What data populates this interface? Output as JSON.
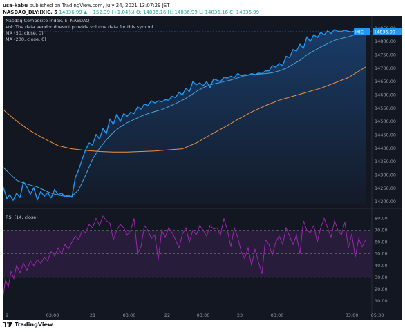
{
  "header": {
    "author": "usa-kabu",
    "published_text": "published on TradingView.com, July 24, 2021 13:07:29 JST",
    "symbol": "NASDAQ_DLY:IXIC, 5",
    "quote": "14836.99 ▲ +152.39 (+1.04%) O: 14836.16 H: 14836.99 L: 14836.16 C: 14836.99"
  },
  "legend": {
    "title": "Nasdaq Composite Index, 5, NASDAQ",
    "vol": "Vol: The data vendor doesn't provide volume data for this symbol.",
    "ma50": "MA (50, close, 0)",
    "ma200": "MA (200, close, 0)",
    "rsi": "RSI (14, close)"
  },
  "colors": {
    "background": "#131722",
    "price_line": "#2196f3",
    "ma50": "#4aa3df",
    "ma200": "#f0913c",
    "rsi": "#9c27b0",
    "rsi_band": "#2a1d3d",
    "tag_bg": "#2196f3"
  },
  "price_tag": {
    "value": "14836.99",
    "label": "IXIC"
  },
  "footer": {
    "brand": "TradingView"
  },
  "chart_data": [
    {
      "type": "line",
      "title": "Nasdaq Composite Index, 5, NASDAQ",
      "ylim": [
        14190,
        14860
      ],
      "y_ticks": [
        "14850.00",
        "14800.00",
        "14750.00",
        "14700.00",
        "14650.00",
        "14600.00",
        "14550.00",
        "14500.00",
        "14450.00",
        "14400.00",
        "14350.00",
        "14300.00",
        "14250.00",
        "14200.00"
      ],
      "x_labels": [
        "9",
        "03:00",
        "21",
        "03:00",
        "22",
        "03:00",
        "23",
        "03:00",
        "03:00",
        "05:30"
      ],
      "series": [
        {
          "name": "Nasdaq Composite Index",
          "t": [
            0,
            3,
            6,
            10,
            15,
            20,
            25,
            30,
            35,
            40,
            45,
            50,
            55,
            60,
            65,
            70,
            75,
            80,
            85,
            90,
            95,
            100,
            105,
            110,
            115,
            120,
            125,
            130,
            135,
            140,
            145,
            150,
            155,
            160,
            165,
            170,
            175,
            180,
            185,
            190,
            195,
            200,
            205,
            210,
            215,
            220,
            225,
            230,
            235,
            240,
            245,
            250,
            255,
            260,
            265,
            270,
            275,
            280,
            285,
            290,
            295,
            300,
            305,
            310,
            315,
            320,
            325,
            330,
            335,
            340,
            345,
            350,
            355,
            360,
            365,
            370,
            375,
            380,
            385,
            390,
            395,
            400,
            405,
            410,
            415,
            420,
            425,
            430,
            435,
            440,
            445,
            450,
            455,
            460,
            465,
            470,
            475,
            480,
            485,
            490,
            495,
            500,
            505,
            510,
            515,
            520,
            525
          ],
          "values": [
            14260,
            14236,
            14210,
            14226,
            14205,
            14232,
            14215,
            14275,
            14255,
            14228,
            14252,
            14206,
            14238,
            14220,
            14234,
            14214,
            14246,
            14226,
            14232,
            14220,
            14225,
            14216,
            14290,
            14320,
            14360,
            14395,
            14420,
            14412,
            14452,
            14435,
            14474,
            14455,
            14510,
            14490,
            14528,
            14500,
            14530,
            14520,
            14535,
            14530,
            14555,
            14547,
            14566,
            14560,
            14578,
            14570,
            14578,
            14574,
            14582,
            14580,
            14595,
            14590,
            14610,
            14600,
            14625,
            14612,
            14650,
            14638,
            14645,
            14635,
            14650,
            14628,
            14660,
            14655,
            14650,
            14666,
            14663,
            14670,
            14665,
            14680,
            14672,
            14676,
            14674,
            14680,
            14676,
            14682,
            14680,
            14690,
            14690,
            14710,
            14704,
            14718,
            14710,
            14745,
            14740,
            14770,
            14764,
            14790,
            14775,
            14818,
            14800,
            14826,
            14815,
            14835,
            14825,
            14840,
            14830,
            14845,
            14838,
            14838,
            14842,
            14838,
            14836,
            14840,
            14836,
            14838,
            14836.99
          ]
        },
        {
          "name": "MA (50, close, 0)",
          "t": [
            0,
            10,
            20,
            30,
            40,
            50,
            60,
            70,
            80,
            90,
            100,
            110,
            120,
            130,
            140,
            150,
            160,
            170,
            180,
            190,
            200,
            210,
            220,
            230,
            240,
            250,
            260,
            270,
            280,
            290,
            300,
            310,
            320,
            330,
            340,
            350,
            360,
            370,
            380,
            390,
            400,
            410,
            420,
            430,
            440,
            450,
            460,
            470,
            480,
            490,
            500,
            510,
            520,
            525
          ],
          "values": [
            14330,
            14305,
            14280,
            14270,
            14262,
            14255,
            14243,
            14232,
            14225,
            14220,
            14220,
            14245,
            14300,
            14360,
            14400,
            14432,
            14460,
            14480,
            14496,
            14508,
            14520,
            14530,
            14538,
            14545,
            14556,
            14568,
            14580,
            14595,
            14613,
            14627,
            14638,
            14644,
            14650,
            14656,
            14664,
            14672,
            14676,
            14678,
            14680,
            14683,
            14690,
            14700,
            14715,
            14730,
            14750,
            14765,
            14780,
            14792,
            14805,
            14812,
            14818,
            14826,
            14832,
            14836
          ]
        },
        {
          "name": "MA (200, close, 0)",
          "t": [
            0,
            20,
            40,
            60,
            80,
            100,
            120,
            140,
            160,
            180,
            200,
            220,
            240,
            260,
            280,
            300,
            320,
            340,
            360,
            380,
            400,
            420,
            440,
            460,
            480,
            500,
            525
          ],
          "values": [
            14546,
            14502,
            14465,
            14436,
            14410,
            14398,
            14392,
            14388,
            14386,
            14386,
            14388,
            14390,
            14394,
            14398,
            14420,
            14450,
            14478,
            14508,
            14536,
            14560,
            14580,
            14595,
            14610,
            14625,
            14645,
            14665,
            14705
          ]
        }
      ]
    },
    {
      "type": "line",
      "title": "RSI (14, close)",
      "ylim": [
        0,
        85
      ],
      "y_ticks": [
        "80.00",
        "70.00",
        "60.00",
        "50.00",
        "40.00",
        "30.00",
        "20.00",
        "10.00"
      ],
      "bands": [
        30,
        50,
        70
      ],
      "series": [
        {
          "name": "RSI (14, close)",
          "t": [
            0,
            4,
            8,
            12,
            16,
            20,
            25,
            30,
            35,
            40,
            45,
            50,
            55,
            60,
            65,
            70,
            75,
            80,
            85,
            90,
            95,
            100,
            105,
            110,
            115,
            120,
            125,
            130,
            135,
            140,
            145,
            150,
            155,
            160,
            165,
            170,
            175,
            180,
            185,
            190,
            195,
            200,
            205,
            210,
            215,
            220,
            225,
            230,
            235,
            240,
            245,
            250,
            255,
            260,
            265,
            270,
            275,
            280,
            285,
            290,
            295,
            300,
            305,
            310,
            315,
            320,
            325,
            330,
            335,
            340,
            345,
            350,
            355,
            360,
            365,
            370,
            375,
            380,
            385,
            390,
            395,
            400,
            405,
            410,
            415,
            420,
            425,
            430,
            435,
            440,
            445,
            450,
            455,
            460,
            465,
            470,
            475,
            480,
            485,
            490,
            495,
            500,
            505,
            510,
            515,
            520,
            525
          ],
          "values": [
            12,
            28,
            22,
            35,
            29,
            40,
            34,
            42,
            36,
            44,
            40,
            45,
            42,
            47,
            44,
            52,
            48,
            55,
            50,
            58,
            54,
            60,
            65,
            62,
            70,
            68,
            75,
            72,
            80,
            74,
            82,
            78,
            76,
            62,
            70,
            75,
            72,
            66,
            70,
            80,
            50,
            56,
            74,
            70,
            63,
            66,
            45,
            70,
            64,
            72,
            68,
            62,
            55,
            67,
            72,
            60,
            70,
            66,
            74,
            70,
            65,
            74,
            71,
            72,
            66,
            80,
            70,
            56,
            72,
            64,
            52,
            46,
            55,
            40,
            54,
            43,
            33,
            62,
            58,
            49,
            60,
            65,
            58,
            72,
            65,
            58,
            66,
            50,
            78,
            70,
            68,
            74,
            60,
            72,
            80,
            72,
            64,
            78,
            70,
            66,
            77,
            55,
            67,
            47,
            63,
            56,
            62
          ]
        }
      ]
    }
  ]
}
